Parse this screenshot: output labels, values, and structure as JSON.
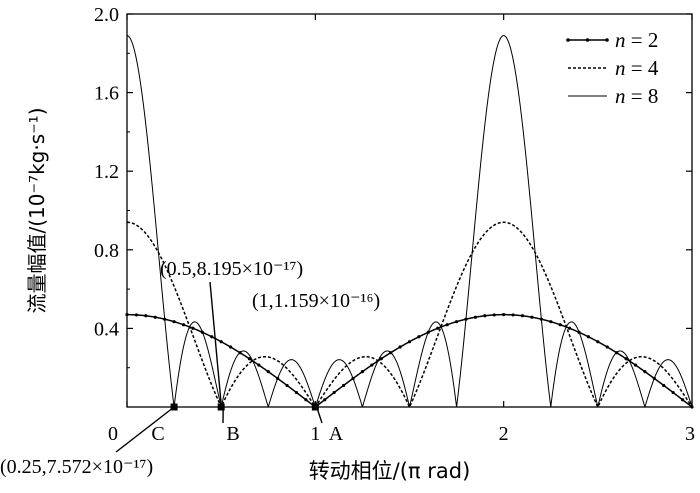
{
  "chart_data": {
    "type": "line",
    "xlabel": "转动相位/(π rad)",
    "ylabel": "流量幅值/(10⁻⁷kg·s⁻¹)",
    "xlim": [
      0,
      3
    ],
    "ylim": [
      0,
      2.0
    ],
    "x_ticks": [
      "0",
      "1",
      "2",
      "3"
    ],
    "y_ticks": [
      "0.4",
      "0.8",
      "1.2",
      "1.6",
      "2.0"
    ],
    "legend_position": "top-right",
    "series": [
      {
        "name_prefix": "n",
        "name_value": " = 2",
        "n": 2,
        "peak": 0.47,
        "style": "solid-dots"
      },
      {
        "name_prefix": "n",
        "name_value": " = 4",
        "n": 4,
        "peak": 0.94,
        "style": "dashed"
      },
      {
        "name_prefix": "n",
        "name_value": " = 8",
        "n": 8,
        "peak": 1.89,
        "style": "solid"
      }
    ],
    "points": [
      {
        "label": "A",
        "x": 1,
        "y": 0,
        "annotation": "(1,1.159×10⁻¹⁶)"
      },
      {
        "label": "B",
        "x": 0.5,
        "y": 0,
        "annotation": "(0.5,8.195×10⁻¹⁷)"
      },
      {
        "label": "C",
        "x": 0.25,
        "y": 0,
        "annotation": "(0.25,7.572×10⁻¹⁷)"
      }
    ]
  }
}
